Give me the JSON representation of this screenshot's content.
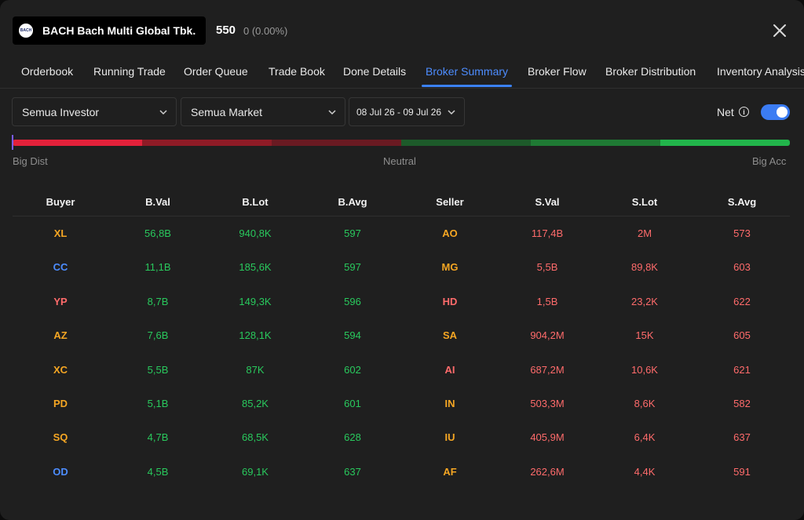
{
  "header": {
    "logo_text": "BACH",
    "ticker_name": "BACH Bach Multi Global Tbk.",
    "price": "550",
    "change": "0 (0.00%)"
  },
  "tabs": [
    "Orderbook",
    "Running Trade",
    "Order Queue",
    "Trade Book",
    "Done Details",
    "Broker Summary",
    "Broker Flow",
    "Broker Distribution",
    "Inventory Analysis"
  ],
  "active_tab": "Broker Summary",
  "filters": {
    "investor": "Semua Investor",
    "market": "Semua Market",
    "date_range": "08 Jul 26 - 09 Jul 26"
  },
  "net": {
    "label": "Net",
    "enabled": true,
    "info_icon": "info-icon"
  },
  "gauge": {
    "left_label": "Big Dist",
    "mid_label": "Neutral",
    "right_label": "Big Acc",
    "segment_colors": [
      "#e3213a",
      "#8f1b26",
      "#6a1a22",
      "#1d5a2a",
      "#1f7a34",
      "#22b54b"
    ],
    "indicator_fraction": 0
  },
  "colors": {
    "accent": "#3b82f6",
    "buy": "#29c95d",
    "sell": "#ff6b6b",
    "broker_orange": "#f5a623",
    "broker_blue": "#4d8dff",
    "broker_red": "#ff6b6b"
  },
  "table": {
    "headers": [
      "Buyer",
      "B.Val",
      "B.Lot",
      "B.Avg",
      "Seller",
      "S.Val",
      "S.Lot",
      "S.Avg"
    ],
    "rows": [
      {
        "buyer": "XL",
        "buyer_color": "#f5a623",
        "b_val": "56,8B",
        "b_lot": "940,8K",
        "b_avg": "597",
        "seller": "AO",
        "seller_color": "#f5a623",
        "s_val": "117,4B",
        "s_lot": "2M",
        "s_avg": "573"
      },
      {
        "buyer": "CC",
        "buyer_color": "#4d8dff",
        "b_val": "11,1B",
        "b_lot": "185,6K",
        "b_avg": "597",
        "seller": "MG",
        "seller_color": "#f5a623",
        "s_val": "5,5B",
        "s_lot": "89,8K",
        "s_avg": "603"
      },
      {
        "buyer": "YP",
        "buyer_color": "#ff6b6b",
        "b_val": "8,7B",
        "b_lot": "149,3K",
        "b_avg": "596",
        "seller": "HD",
        "seller_color": "#ff6b6b",
        "s_val": "1,5B",
        "s_lot": "23,2K",
        "s_avg": "622"
      },
      {
        "buyer": "AZ",
        "buyer_color": "#f5a623",
        "b_val": "7,6B",
        "b_lot": "128,1K",
        "b_avg": "594",
        "seller": "SA",
        "seller_color": "#f5a623",
        "s_val": "904,2M",
        "s_lot": "15K",
        "s_avg": "605"
      },
      {
        "buyer": "XC",
        "buyer_color": "#f5a623",
        "b_val": "5,5B",
        "b_lot": "87K",
        "b_avg": "602",
        "seller": "AI",
        "seller_color": "#ff6b6b",
        "s_val": "687,2M",
        "s_lot": "10,6K",
        "s_avg": "621"
      },
      {
        "buyer": "PD",
        "buyer_color": "#f5a623",
        "b_val": "5,1B",
        "b_lot": "85,2K",
        "b_avg": "601",
        "seller": "IN",
        "seller_color": "#f5a623",
        "s_val": "503,3M",
        "s_lot": "8,6K",
        "s_avg": "582"
      },
      {
        "buyer": "SQ",
        "buyer_color": "#f5a623",
        "b_val": "4,7B",
        "b_lot": "68,5K",
        "b_avg": "628",
        "seller": "IU",
        "seller_color": "#f5a623",
        "s_val": "405,9M",
        "s_lot": "6,4K",
        "s_avg": "637"
      },
      {
        "buyer": "OD",
        "buyer_color": "#4d8dff",
        "b_val": "4,5B",
        "b_lot": "69,1K",
        "b_avg": "637",
        "seller": "AF",
        "seller_color": "#f5a623",
        "s_val": "262,6M",
        "s_lot": "4,4K",
        "s_avg": "591"
      }
    ]
  }
}
